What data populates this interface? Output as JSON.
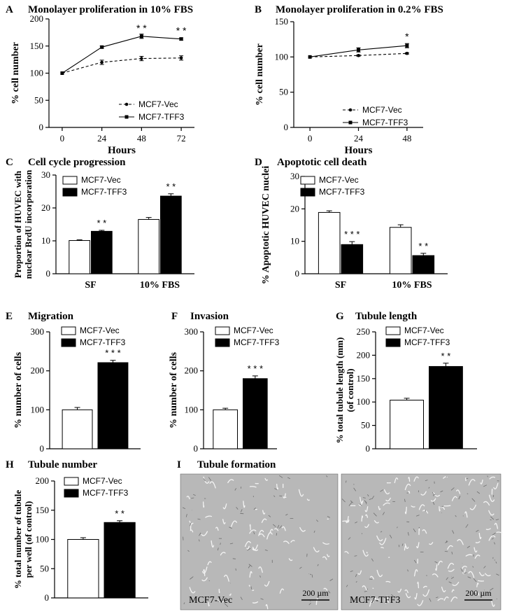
{
  "charts": {
    "A": {
      "panel_letter": "A",
      "type": "line",
      "title": "Monolayer proliferation in 10% FBS",
      "xlabel": "Hours",
      "ylabel": "% cell number",
      "x": [
        0,
        24,
        48,
        72
      ],
      "xlim": [
        -8,
        80
      ],
      "ylim": [
        0,
        200
      ],
      "yticks": [
        0,
        50,
        100,
        150,
        200
      ],
      "series": [
        {
          "name": "MCF7-Vec",
          "values": [
            100,
            120,
            127,
            128
          ],
          "errors": [
            0,
            4,
            4,
            4
          ],
          "style": "dashed",
          "marker": "circle"
        },
        {
          "name": "MCF7-TFF3",
          "values": [
            100,
            148,
            168,
            163
          ],
          "errors": [
            0,
            2,
            4,
            2
          ],
          "style": "solid",
          "marker": "square"
        }
      ],
      "annotations": [
        {
          "x": 48,
          "y": 177,
          "text": "* *"
        },
        {
          "x": 72,
          "y": 172,
          "text": "* *"
        }
      ]
    },
    "B": {
      "panel_letter": "B",
      "type": "line",
      "title": "Monolayer proliferation in 0.2% FBS",
      "xlabel": "Hours",
      "ylabel": "% cell number",
      "x": [
        0,
        24,
        48
      ],
      "xlim": [
        -8,
        56
      ],
      "ylim": [
        0,
        150
      ],
      "yticks": [
        0,
        50,
        100,
        150
      ],
      "series": [
        {
          "name": "MCF7-Vec",
          "values": [
            100,
            102,
            105
          ],
          "errors": [
            0,
            1,
            1
          ],
          "style": "dashed",
          "marker": "circle"
        },
        {
          "name": "MCF7-TFF3",
          "values": [
            100,
            110,
            116
          ],
          "errors": [
            0,
            3,
            3
          ],
          "style": "solid",
          "marker": "square"
        }
      ],
      "annotations": [
        {
          "x": 48,
          "y": 124,
          "text": "*"
        }
      ]
    },
    "C": {
      "panel_letter": "C",
      "type": "bar",
      "title": "Cell cycle progression",
      "ylabel_lines": [
        "Proportion of HUVEC with",
        "nuclear BrdU incorporation"
      ],
      "categories": [
        "SF",
        "10% FBS"
      ],
      "ylim": [
        0,
        30
      ],
      "yticks": [
        0,
        10,
        20,
        30
      ],
      "series": [
        {
          "name": "MCF7-Vec",
          "values": [
            10.1,
            16.5
          ],
          "errors": [
            0.2,
            0.6
          ]
        },
        {
          "name": "MCF7-TFF3",
          "values": [
            12.9,
            23.6
          ],
          "errors": [
            0.3,
            0.7
          ]
        }
      ],
      "annotations": [
        {
          "text": "* *"
        },
        {
          "text": "* *"
        }
      ]
    },
    "D": {
      "panel_letter": "D",
      "type": "bar",
      "title": "Apoptotic cell death",
      "ylabel": "% Apoptotic HUVEC nuclei",
      "categories": [
        "SF",
        "10% FBS"
      ],
      "ylim": [
        0,
        30
      ],
      "yticks": [
        0,
        10,
        20,
        30
      ],
      "series": [
        {
          "name": "MCF7-Vec",
          "values": [
            18.9,
            14.3
          ],
          "errors": [
            0.5,
            0.8
          ]
        },
        {
          "name": "MCF7-TFF3",
          "values": [
            9.0,
            5.6
          ],
          "errors": [
            0.9,
            0.7
          ]
        }
      ],
      "annotations": [
        {
          "text": "* * *"
        },
        {
          "text": "* *"
        }
      ]
    },
    "E": {
      "panel_letter": "E",
      "type": "bar",
      "title": "Migration",
      "ylabel": "% number of cells",
      "categories": [
        ""
      ],
      "ylim": [
        0,
        300
      ],
      "yticks": [
        0,
        100,
        200,
        300
      ],
      "series": [
        {
          "name": "MCF7-Vec",
          "values": [
            100
          ],
          "errors": [
            6
          ]
        },
        {
          "name": "MCF7-TFF3",
          "values": [
            221
          ],
          "errors": [
            6
          ]
        }
      ],
      "annotations": [
        {
          "text": "* * *"
        }
      ]
    },
    "F": {
      "panel_letter": "F",
      "type": "bar",
      "title": "Invasion",
      "ylabel": "% number of cells",
      "categories": [
        ""
      ],
      "ylim": [
        0,
        300
      ],
      "yticks": [
        0,
        100,
        200,
        300
      ],
      "series": [
        {
          "name": "MCF7-Vec",
          "values": [
            100
          ],
          "errors": [
            4
          ]
        },
        {
          "name": "MCF7-TFF3",
          "values": [
            180
          ],
          "errors": [
            7
          ]
        }
      ],
      "annotations": [
        {
          "text": "* * *"
        }
      ]
    },
    "G": {
      "panel_letter": "G",
      "type": "bar",
      "title": "Tubule length",
      "ylabel_lines": [
        "% total tubule length (mm)",
        "(of control)"
      ],
      "categories": [
        ""
      ],
      "ylim": [
        0,
        250
      ],
      "yticks": [
        0,
        50,
        100,
        150,
        200,
        250
      ],
      "series": [
        {
          "name": "MCF7-Vec",
          "values": [
            104
          ],
          "errors": [
            4
          ]
        },
        {
          "name": "MCF7-TFF3",
          "values": [
            176
          ],
          "errors": [
            7
          ]
        }
      ],
      "annotations": [
        {
          "text": "* *"
        }
      ]
    },
    "H": {
      "panel_letter": "H",
      "type": "bar",
      "title": "Tubule number",
      "ylabel_lines": [
        "% total number of tubule",
        "per well (of control)"
      ],
      "categories": [
        ""
      ],
      "ylim": [
        0,
        200
      ],
      "yticks": [
        0,
        50,
        100,
        150,
        200
      ],
      "series": [
        {
          "name": "MCF7-Vec",
          "values": [
            100
          ],
          "errors": [
            3
          ]
        },
        {
          "name": "MCF7-TFF3",
          "values": [
            129
          ],
          "errors": [
            3
          ]
        }
      ],
      "annotations": [
        {
          "text": "* *"
        }
      ]
    }
  },
  "panel_I": {
    "panel_letter": "I",
    "title": "Tubule formation",
    "images": [
      {
        "label": "MCF7-Vec",
        "scale_bar": "200 µm"
      },
      {
        "label": "MCF7-TFF3",
        "scale_bar": "200 µm"
      }
    ]
  },
  "colors": {
    "axis": "#000000",
    "bar_vec": "#ffffff",
    "bar_tff3": "#000000",
    "micrograph": "#b8b8b8"
  }
}
